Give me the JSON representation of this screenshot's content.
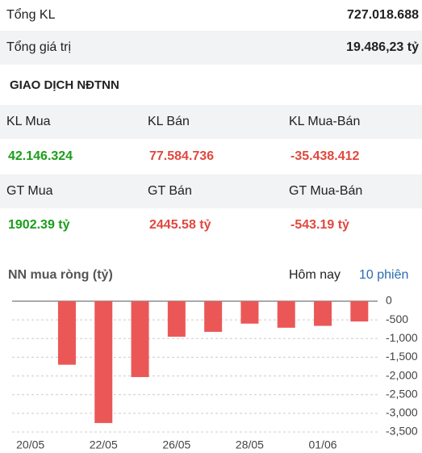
{
  "summary": [
    {
      "label": "Tổng KL",
      "value": "727.018.688"
    },
    {
      "label": "Tổng giá trị",
      "value": "19.486,23 tỷ"
    }
  ],
  "section_title": "GIAO DỊCH NĐTNN",
  "table": {
    "rows": [
      [
        "KL Mua",
        "KL Bán",
        "KL Mua-Bán"
      ],
      [
        "42.146.324",
        "77.584.736",
        "-35.438.412"
      ],
      [
        "GT Mua",
        "GT Bán",
        "GT Mua-Bán"
      ],
      [
        "1902.39 tỷ",
        "2445.58 tỷ",
        "-543.19 tỷ"
      ]
    ]
  },
  "chart_tabs": [
    "Hôm nay",
    "10 phiên"
  ],
  "chart_data": {
    "type": "bar",
    "title": "NN mua ròng (tỷ)",
    "categories": [
      "20/05",
      null,
      "22/05",
      null,
      "26/05",
      null,
      "28/05",
      null,
      "01/06",
      null
    ],
    "values": [
      0,
      -1700,
      -3260,
      -2030,
      -950,
      -820,
      -600,
      -710,
      -660,
      -543.19
    ],
    "color": "#eb5757",
    "ylim": [
      -3500,
      0
    ],
    "yticks": [
      0,
      -500,
      {
        "value": -1000,
        "label": "-1,000"
      },
      {
        "value": -1500,
        "label": "-1,500"
      },
      {
        "value": -2000,
        "label": "-2,000"
      },
      {
        "value": -2500,
        "label": "-2,500"
      },
      {
        "value": -3000,
        "label": "-3,000"
      },
      {
        "value": -3500,
        "label": "-3,500"
      }
    ],
    "grid": true
  }
}
